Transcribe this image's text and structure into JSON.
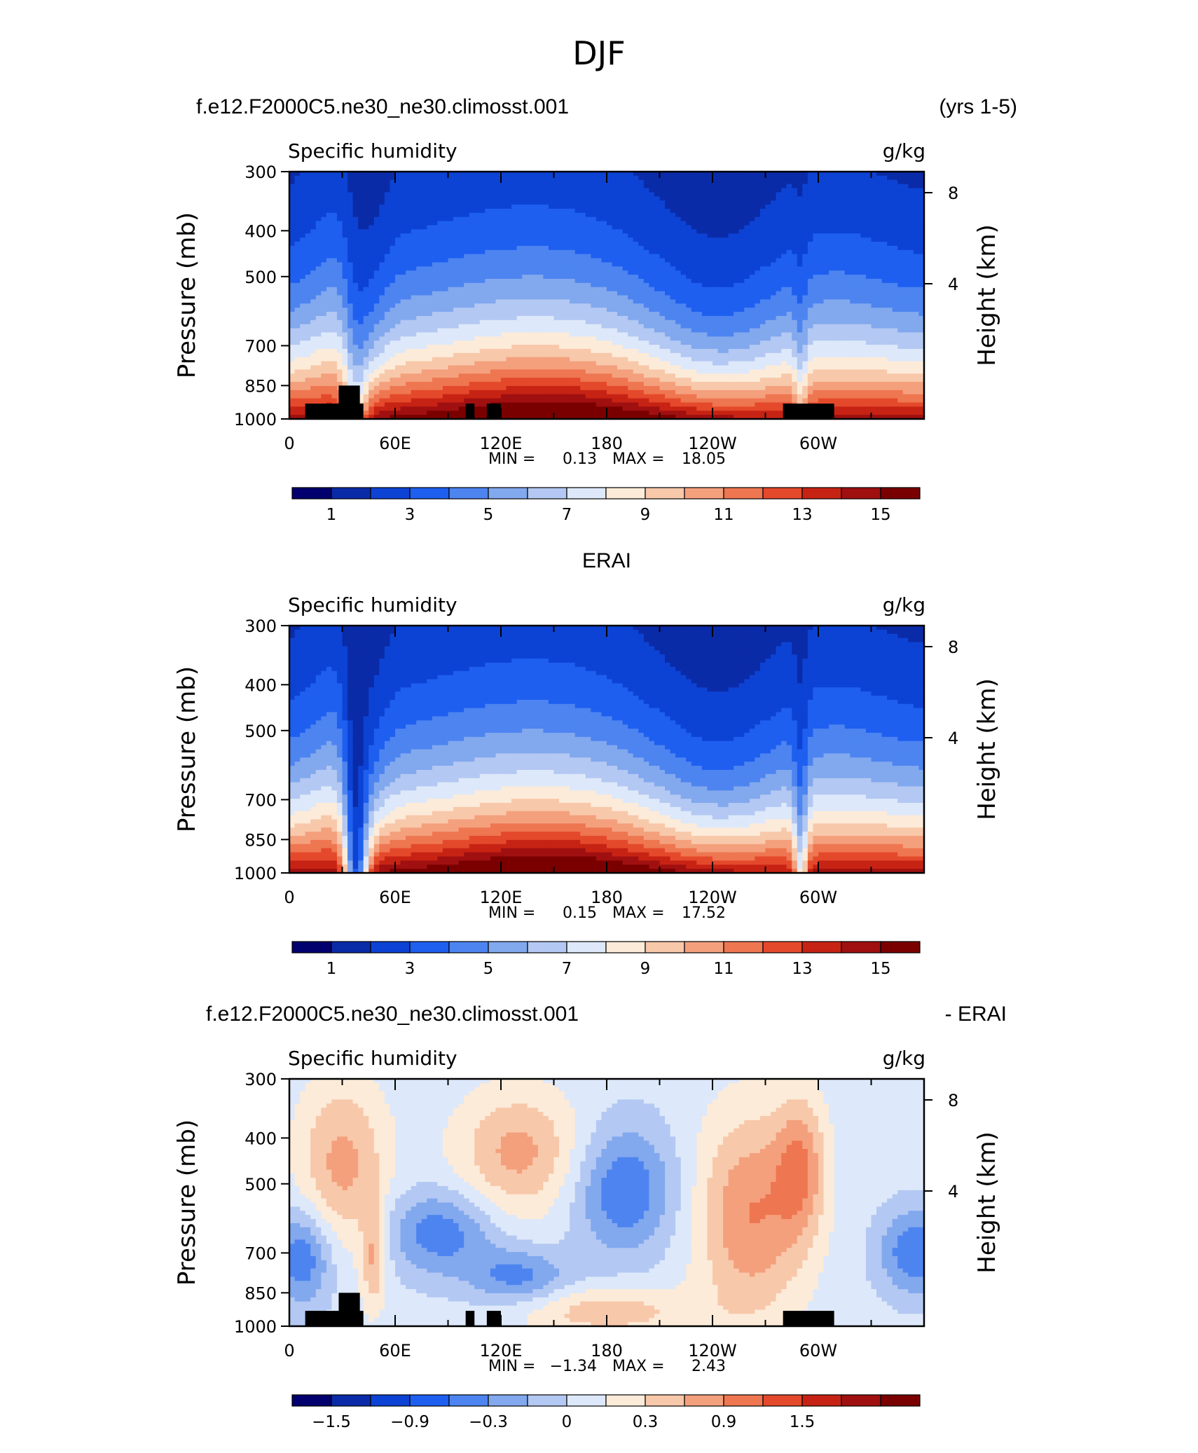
{
  "figure": {
    "title": "DJF"
  },
  "colors": {
    "absolute_scale": [
      "#02006e",
      "#0a2ba8",
      "#0d43d4",
      "#1e5ff0",
      "#4d84f0",
      "#82a8ee",
      "#b3c8f2",
      "#dde8fa",
      "#fcebd9",
      "#f8c8aa",
      "#f4a07d",
      "#ee7650",
      "#e4492b",
      "#c72314",
      "#a01010",
      "#7a0000"
    ],
    "difference_scale": [
      "#02006e",
      "#0a2ba8",
      "#0d43d4",
      "#1e5ff0",
      "#4d84f0",
      "#82a8ee",
      "#b3c8f2",
      "#dde8fa",
      "#fcebd9",
      "#f8c8aa",
      "#f4a07d",
      "#ee7650",
      "#e4492b",
      "#c72314",
      "#a01010",
      "#7a0000"
    ],
    "topography": "#000000"
  },
  "chart_data": [
    {
      "type": "heatmap",
      "case_title": "f.e12.F2000C5.ne30_ne30.climosst.001",
      "years_label": "(yrs 1-5)",
      "left_string": "Specific humidity",
      "right_string": "g/kg",
      "ylabel": "Pressure (mb)",
      "ylabel_right": "Height (km)",
      "x_ticks": [
        "0",
        "60E",
        "120E",
        "180",
        "120W",
        "60W"
      ],
      "y_ticks": [
        "300",
        "400",
        "500",
        "700",
        "850",
        "1000"
      ],
      "y_right_ticks": [
        "8",
        "4"
      ],
      "xlim": [
        0,
        360
      ],
      "ylim": [
        1000,
        300
      ],
      "min_label": "MIN =",
      "min_value": "0.13",
      "max_label": "MAX =",
      "max_value": "18.05",
      "colorbar_labels": [
        "1",
        "3",
        "5",
        "7",
        "9",
        "11",
        "13",
        "15"
      ],
      "field": "model"
    },
    {
      "type": "heatmap",
      "case_title": "ERAI",
      "left_string": "Specific humidity",
      "right_string": "g/kg",
      "ylabel": "Pressure (mb)",
      "ylabel_right": "Height (km)",
      "x_ticks": [
        "0",
        "60E",
        "120E",
        "180",
        "120W",
        "60W"
      ],
      "y_ticks": [
        "300",
        "400",
        "500",
        "700",
        "850",
        "1000"
      ],
      "y_right_ticks": [
        "8",
        "4"
      ],
      "xlim": [
        0,
        360
      ],
      "ylim": [
        1000,
        300
      ],
      "min_label": "MIN =",
      "min_value": "0.15",
      "max_label": "MAX =",
      "max_value": "17.52",
      "colorbar_labels": [
        "1",
        "3",
        "5",
        "7",
        "9",
        "11",
        "13",
        "15"
      ],
      "field": "obs"
    },
    {
      "type": "heatmap",
      "case_title": "f.e12.F2000C5.ne30_ne30.climosst.001",
      "diff_label": "- ERAI",
      "left_string": "Specific humidity",
      "right_string": "g/kg",
      "ylabel": "Pressure (mb)",
      "ylabel_right": "Height (km)",
      "x_ticks": [
        "0",
        "60E",
        "120E",
        "180",
        "120W",
        "60W"
      ],
      "y_ticks": [
        "300",
        "400",
        "500",
        "700",
        "850",
        "1000"
      ],
      "y_right_ticks": [
        "8",
        "4"
      ],
      "xlim": [
        0,
        360
      ],
      "ylim": [
        1000,
        300
      ],
      "min_label": "MIN =",
      "min_value": "−1.34",
      "max_label": "MAX =",
      "max_value": "2.43",
      "colorbar_labels": [
        "−1.5",
        "−0.9",
        "−0.3",
        "0",
        "0.3",
        "0.9",
        "1.5"
      ],
      "field": "diff"
    }
  ]
}
